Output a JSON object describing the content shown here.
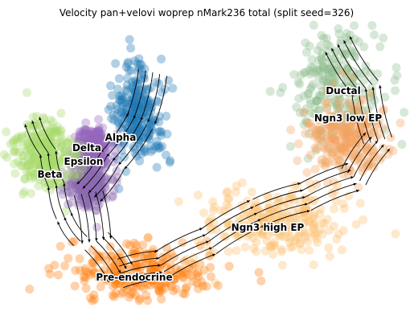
{
  "chart_data": {
    "type": "scatter",
    "title": "Velocity pan+velovi woprep nMark236 total (split seed=326)",
    "xlabel": "",
    "ylabel": "",
    "grid": false,
    "axes_visible": false,
    "overlay": "velocity streamlines with arrowheads",
    "clusters": [
      {
        "name": "Ductal",
        "color": "#8fbc8f",
        "label_pos": [
          427,
          117
        ],
        "center": [
          420,
          110
        ],
        "spread": [
          55,
          70
        ]
      },
      {
        "name": "Ngn3 low EP",
        "color": "#f4a460",
        "label_pos": [
          433,
          151
        ],
        "center": [
          430,
          170
        ],
        "spread": [
          45,
          45
        ]
      },
      {
        "name": "Ngn3 high EP",
        "color": "#fdbf6f",
        "label_pos": [
          333,
          287
        ],
        "center": [
          340,
          275
        ],
        "spread": [
          85,
          40
        ]
      },
      {
        "name": "Pre-endocrine",
        "color": "#ff7f0e",
        "label_pos": [
          167,
          349
        ],
        "center": [
          175,
          340
        ],
        "spread": [
          80,
          30
        ]
      },
      {
        "name": "Alpha",
        "color": "#1f77b4",
        "label_pos": [
          150,
          175
        ],
        "center": [
          170,
          140
        ],
        "spread": [
          30,
          55
        ]
      },
      {
        "name": "Delta",
        "color": "#9467bd",
        "label_pos": [
          108,
          188
        ],
        "center": [
          115,
          185
        ],
        "spread": [
          20,
          25
        ]
      },
      {
        "name": "Epsilon",
        "color": "#8c6bb1",
        "label_pos": [
          104,
          205
        ],
        "center": [
          110,
          230
        ],
        "spread": [
          22,
          25
        ]
      },
      {
        "name": "Beta",
        "color": "#a6d96a",
        "label_pos": [
          62,
          221
        ],
        "center": [
          55,
          190
        ],
        "spread": [
          35,
          40
        ]
      }
    ]
  }
}
